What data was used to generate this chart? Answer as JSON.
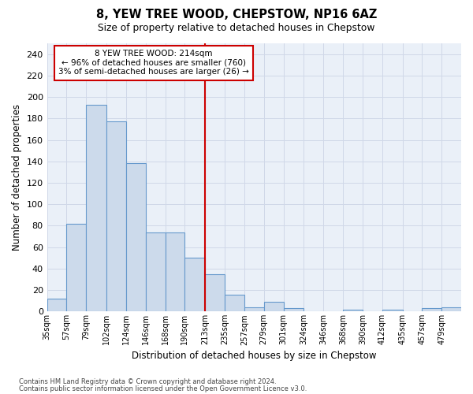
{
  "title": "8, YEW TREE WOOD, CHEPSTOW, NP16 6AZ",
  "subtitle": "Size of property relative to detached houses in Chepstow",
  "xlabel": "Distribution of detached houses by size in Chepstow",
  "ylabel": "Number of detached properties",
  "bar_color": "#ccdaeb",
  "bar_edge_color": "#6699cc",
  "bin_labels": [
    "35sqm",
    "57sqm",
    "79sqm",
    "102sqm",
    "124sqm",
    "146sqm",
    "168sqm",
    "190sqm",
    "213sqm",
    "235sqm",
    "257sqm",
    "279sqm",
    "301sqm",
    "324sqm",
    "346sqm",
    "368sqm",
    "390sqm",
    "412sqm",
    "435sqm",
    "457sqm",
    "479sqm"
  ],
  "bar_heights": [
    12,
    82,
    193,
    177,
    138,
    74,
    74,
    50,
    35,
    16,
    4,
    9,
    3,
    0,
    0,
    2,
    0,
    2,
    0,
    3,
    4
  ],
  "vline_color": "#cc0000",
  "annotation_text": "8 YEW TREE WOOD: 214sqm\n← 96% of detached houses are smaller (760)\n3% of semi-detached houses are larger (26) →",
  "annotation_box_color": "#ffffff",
  "annotation_box_edge": "#cc0000",
  "ylim": [
    0,
    250
  ],
  "yticks": [
    0,
    20,
    40,
    60,
    80,
    100,
    120,
    140,
    160,
    180,
    200,
    220,
    240
  ],
  "footnote1": "Contains HM Land Registry data © Crown copyright and database right 2024.",
  "footnote2": "Contains public sector information licensed under the Open Government Licence v3.0.",
  "bin_edges": [
    35,
    57,
    79,
    102,
    124,
    146,
    168,
    190,
    213,
    235,
    257,
    279,
    301,
    324,
    346,
    368,
    390,
    412,
    435,
    457,
    479,
    501
  ],
  "vline_x": 213,
  "grid_color": "#d0d8e8",
  "background_color": "#eaf0f8"
}
